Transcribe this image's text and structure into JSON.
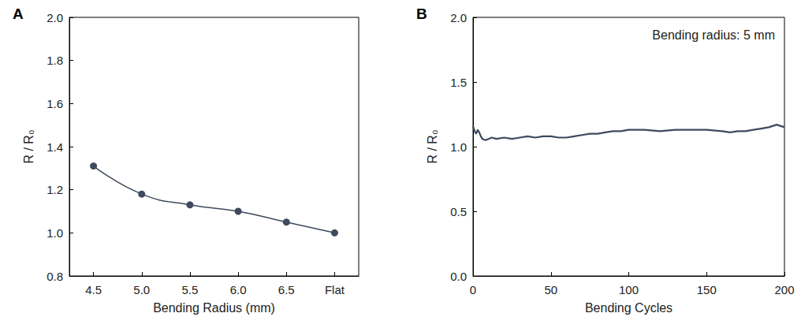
{
  "chart_data": [
    {
      "type": "line",
      "title": "A",
      "x_label": "Bending Radius (mm)",
      "y_label": "R / R₀",
      "categories": [
        "4.5",
        "5.0",
        "5.5",
        "6.0",
        "6.5",
        "Flat"
      ],
      "values": [
        1.31,
        1.18,
        1.13,
        1.1,
        1.05,
        1.0
      ],
      "color": "#3f4a5e",
      "marker": "circle",
      "line_style": "solid",
      "ylim": [
        0.8,
        2.0
      ],
      "yticks": [
        0.8,
        {
          "value": 1,
          "label": "1.0"
        },
        1.2,
        1.4,
        1.6,
        1.8,
        {
          "value": 2,
          "label": "2.0"
        }
      ],
      "grid": false
    },
    {
      "type": "line",
      "title": "B",
      "x_label": "Bending Cycles",
      "y_label": "R / R₀",
      "annotations": [
        "Bending radius: 5 mm"
      ],
      "x": [
        0,
        1,
        2,
        3,
        4,
        5,
        6,
        8,
        10,
        12,
        15,
        20,
        25,
        30,
        35,
        40,
        45,
        50,
        55,
        60,
        65,
        70,
        75,
        80,
        85,
        90,
        95,
        100,
        110,
        120,
        130,
        140,
        150,
        160,
        165,
        170,
        175,
        180,
        185,
        190,
        195,
        200
      ],
      "values": [
        1.16,
        1.12,
        1.1,
        1.13,
        1.11,
        1.08,
        1.06,
        1.05,
        1.06,
        1.07,
        1.06,
        1.07,
        1.06,
        1.07,
        1.08,
        1.07,
        1.08,
        1.08,
        1.07,
        1.07,
        1.08,
        1.09,
        1.1,
        1.1,
        1.11,
        1.12,
        1.12,
        1.13,
        1.13,
        1.12,
        1.13,
        1.13,
        1.13,
        1.12,
        1.11,
        1.12,
        1.12,
        1.13,
        1.14,
        1.15,
        1.17,
        1.15
      ],
      "color": "#3f4a5e",
      "marker": "none",
      "line_style": "solid",
      "xlim": [
        0,
        200
      ],
      "xticks": [
        0,
        50,
        100,
        150,
        200
      ],
      "ylim": [
        0,
        2
      ],
      "yticks": [
        {
          "value": 0,
          "label": "0.0"
        },
        0.5,
        {
          "value": 1,
          "label": "1.0"
        },
        1.5,
        {
          "value": 2,
          "label": "2.0"
        }
      ],
      "grid": false
    }
  ]
}
